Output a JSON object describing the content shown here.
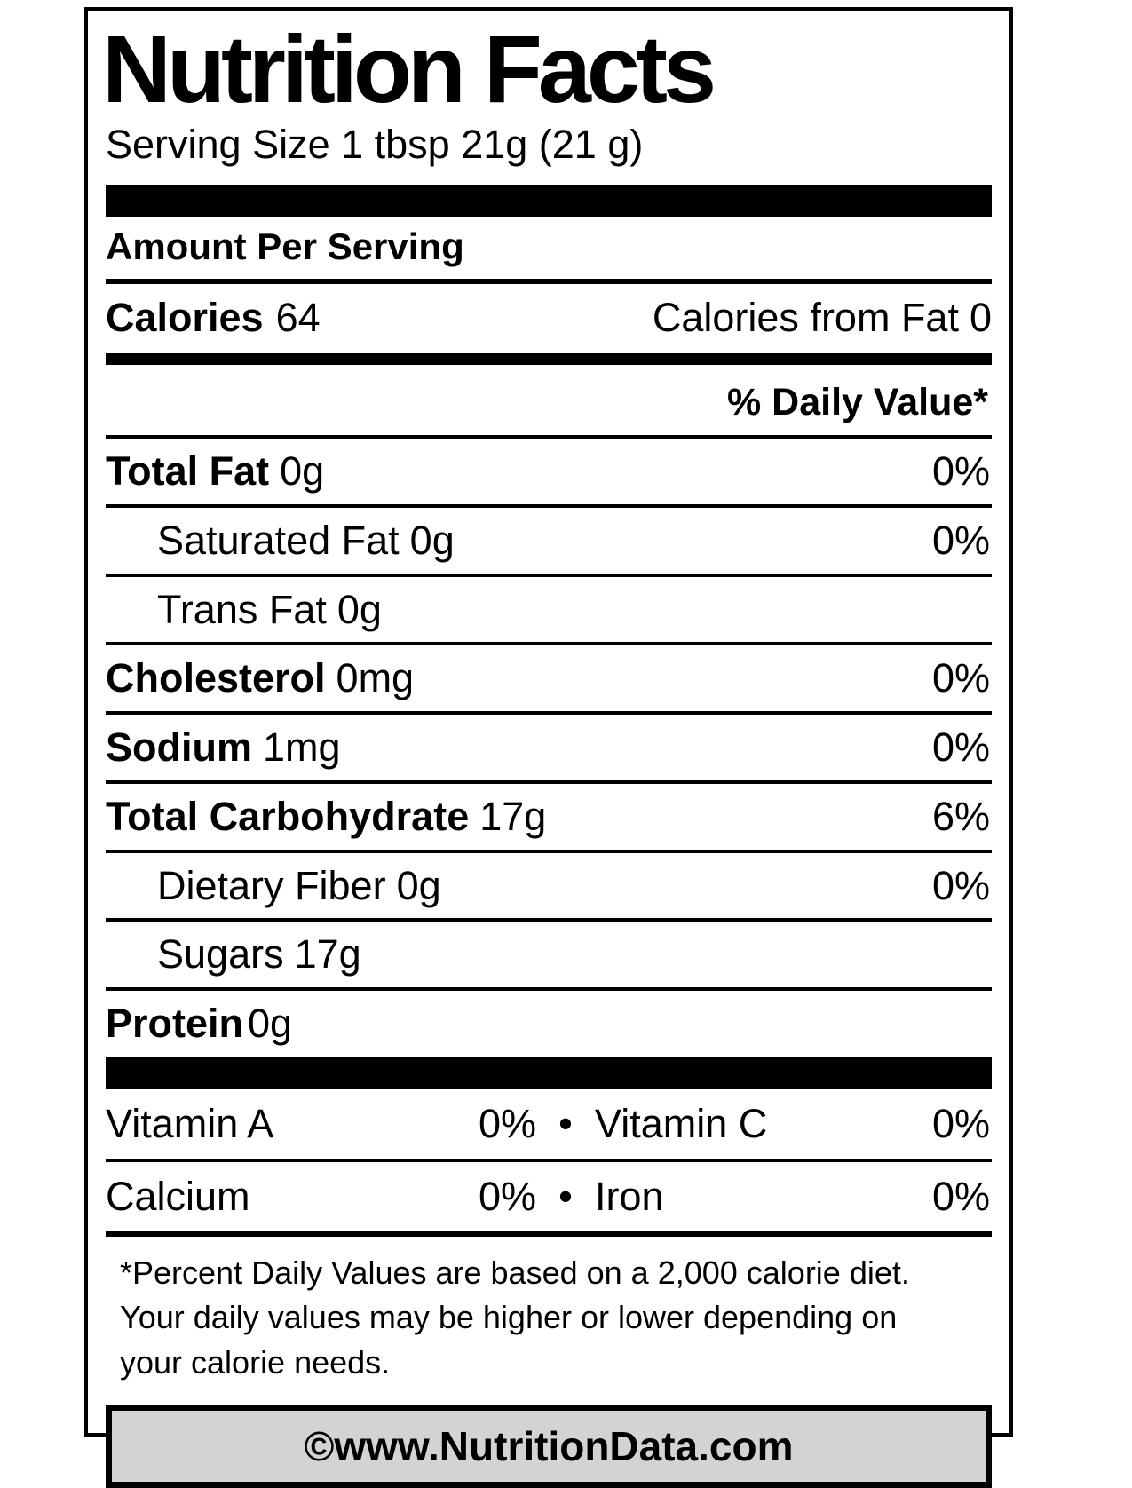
{
  "label": {
    "title": "Nutrition Facts",
    "serving_size": "Serving Size 1 tbsp 21g (21 g)",
    "amount_per_serving": "Amount Per Serving",
    "calories": {
      "label": "Calories",
      "value": "64"
    },
    "calories_from_fat": {
      "label": "Calories from Fat",
      "value": "0"
    },
    "daily_value_header": "% Daily Value*",
    "rows": [
      {
        "label": "Total Fat",
        "amount": "0g",
        "percent": "0%"
      },
      {
        "label": "Saturated Fat",
        "amount": "0g",
        "percent": "0%"
      },
      {
        "label": "Trans Fat",
        "amount": "0g",
        "percent": ""
      },
      {
        "label": "Cholesterol",
        "amount": "0mg",
        "percent": "0%"
      },
      {
        "label": "Sodium",
        "amount": "1mg",
        "percent": "0%"
      },
      {
        "label": "Total Carbohydrate",
        "amount": "17g",
        "percent": "6%"
      },
      {
        "label": "Dietary Fiber",
        "amount": "0g",
        "percent": "0%"
      },
      {
        "label": "Sugars",
        "amount": "17g",
        "percent": ""
      },
      {
        "label": "Protein",
        "amount": "0g",
        "percent": ""
      }
    ],
    "micronutrients": [
      {
        "left_label": "Vitamin A",
        "left_percent": "0%",
        "bullet": "•",
        "right_label": "Vitamin C",
        "right_percent": "0%"
      },
      {
        "left_label": "Calcium",
        "left_percent": "0%",
        "bullet": "•",
        "right_label": "Iron",
        "right_percent": "0%"
      }
    ],
    "footnote_lines": [
      "*Percent Daily Values are based on a 2,000 calorie diet.",
      "Your daily values may be higher or lower depending on",
      "your calorie needs."
    ],
    "footer": "©www.NutritionData.com",
    "colors": {
      "text": "#000000",
      "background": "#ffffff",
      "footer_bg": "#d3d3d3"
    }
  }
}
